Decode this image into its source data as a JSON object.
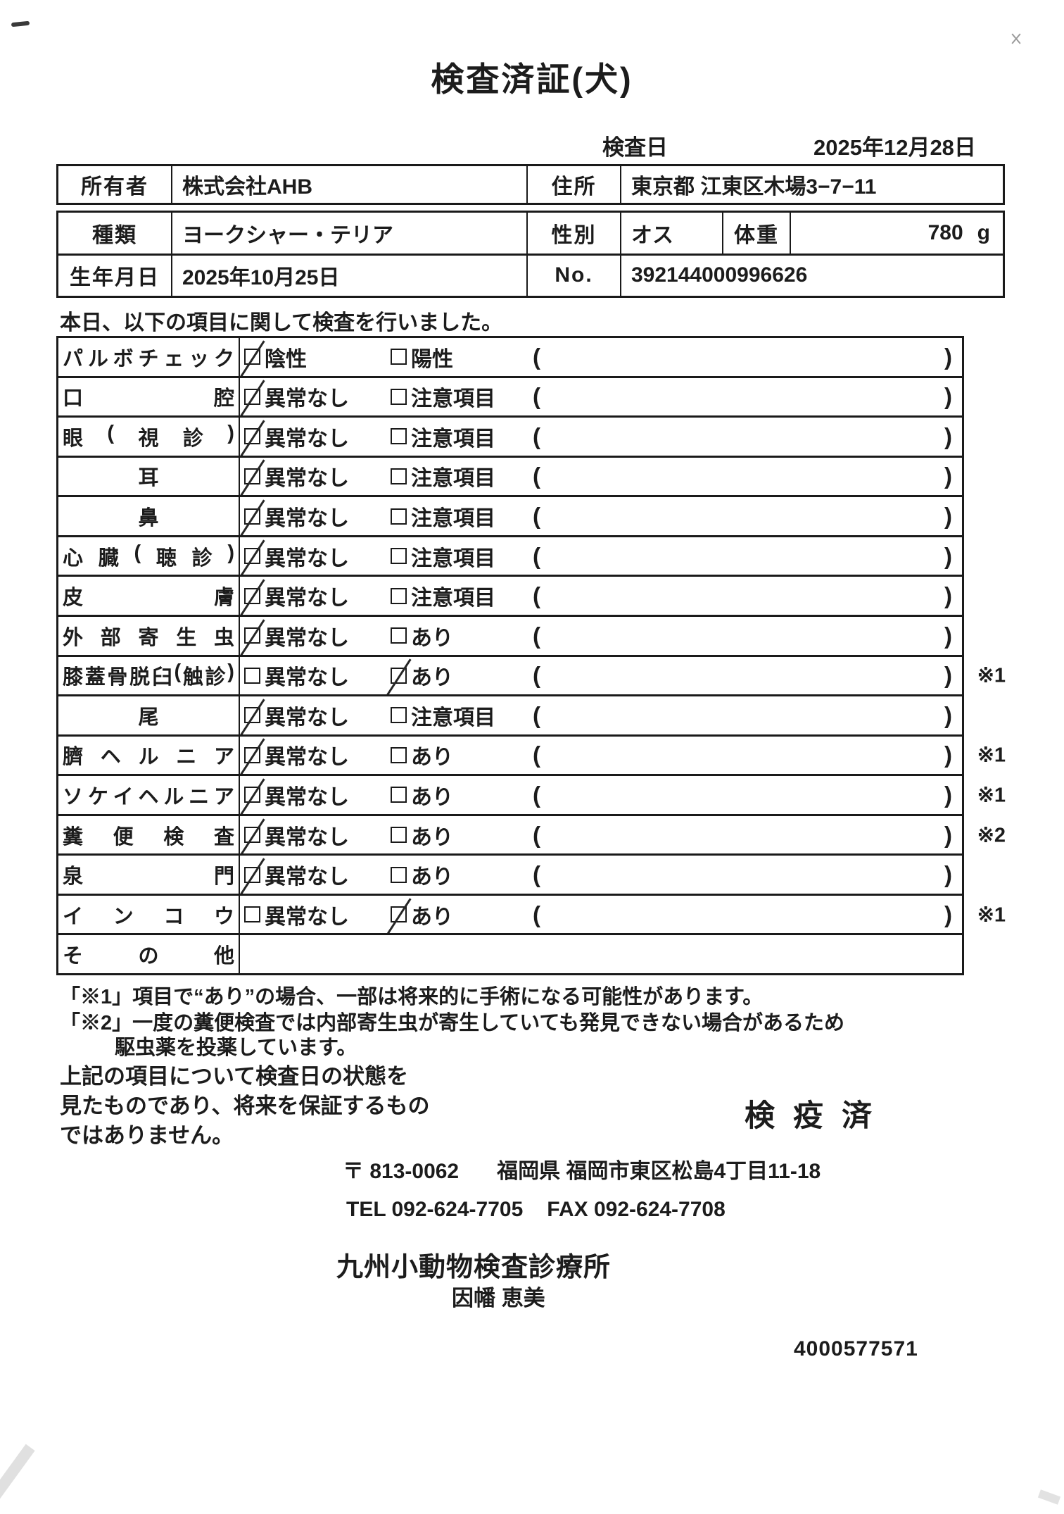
{
  "title": "検査済証(犬)",
  "inspection": {
    "date_label": "検査日",
    "date_value": "2025年12月28日"
  },
  "owner_table": {
    "owner_label": "所有者",
    "owner_value": "株式会社AHB",
    "address_label": "住所",
    "address_value": "東京都 江東区木場3−7−11"
  },
  "animal_table": {
    "breed_label": "種類",
    "breed_value": "ヨークシャー・テリア",
    "sex_label": "性別",
    "sex_value": "オス",
    "weight_label": "体重",
    "weight_value": "780",
    "weight_unit": "g",
    "birth_label": "生年月日",
    "birth_value": "2025年10月25日",
    "no_label": "No.",
    "no_value": "392144000996626"
  },
  "intro": "本日、以下の項目に関して検査を行いました。",
  "check_table": {
    "paren_open": "(",
    "paren_close": ")",
    "rows": [
      {
        "label": "パルボチェック",
        "options": true,
        "opt1": "陰性",
        "opt1_checked": true,
        "opt2": "陽性",
        "opt2_checked": false,
        "note": ""
      },
      {
        "label": "口腔",
        "options": true,
        "opt1": "異常なし",
        "opt1_checked": true,
        "opt2": "注意項目",
        "opt2_checked": false,
        "note": ""
      },
      {
        "label": "眼(視診)",
        "options": true,
        "opt1": "異常なし",
        "opt1_checked": true,
        "opt2": "注意項目",
        "opt2_checked": false,
        "note": ""
      },
      {
        "label": "耳",
        "options": true,
        "opt1": "異常なし",
        "opt1_checked": true,
        "opt2": "注意項目",
        "opt2_checked": false,
        "note": ""
      },
      {
        "label": "鼻",
        "options": true,
        "opt1": "異常なし",
        "opt1_checked": true,
        "opt2": "注意項目",
        "opt2_checked": false,
        "note": ""
      },
      {
        "label": "心臓(聴診)",
        "options": true,
        "opt1": "異常なし",
        "opt1_checked": true,
        "opt2": "注意項目",
        "opt2_checked": false,
        "note": ""
      },
      {
        "label": "皮膚",
        "options": true,
        "opt1": "異常なし",
        "opt1_checked": true,
        "opt2": "注意項目",
        "opt2_checked": false,
        "note": ""
      },
      {
        "label": "外部寄生虫",
        "options": true,
        "opt1": "異常なし",
        "opt1_checked": true,
        "opt2": "あり",
        "opt2_checked": false,
        "note": ""
      },
      {
        "label": "膝蓋骨脱臼(触診)",
        "options": true,
        "opt1": "異常なし",
        "opt1_checked": false,
        "opt2": "あり",
        "opt2_checked": true,
        "note": "※1"
      },
      {
        "label": "尾",
        "options": true,
        "opt1": "異常なし",
        "opt1_checked": true,
        "opt2": "注意項目",
        "opt2_checked": false,
        "note": ""
      },
      {
        "label": "臍ヘルニア",
        "options": true,
        "opt1": "異常なし",
        "opt1_checked": true,
        "opt2": "あり",
        "opt2_checked": false,
        "note": "※1"
      },
      {
        "label": "ソケイヘルニア",
        "options": true,
        "opt1": "異常なし",
        "opt1_checked": true,
        "opt2": "あり",
        "opt2_checked": false,
        "note": "※1"
      },
      {
        "label": "糞便検査",
        "options": true,
        "opt1": "異常なし",
        "opt1_checked": true,
        "opt2": "あり",
        "opt2_checked": false,
        "note": "※2"
      },
      {
        "label": "泉門",
        "options": true,
        "opt1": "異常なし",
        "opt1_checked": true,
        "opt2": "あり",
        "opt2_checked": false,
        "note": ""
      },
      {
        "label": "インコウ",
        "options": true,
        "opt1": "異常なし",
        "opt1_checked": false,
        "opt2": "あり",
        "opt2_checked": true,
        "note": "※1"
      },
      {
        "label": "その他",
        "options": false,
        "opt1": "",
        "opt1_checked": false,
        "opt2": "",
        "opt2_checked": false,
        "note": ""
      }
    ]
  },
  "notes": {
    "note1": "「※1」項目で“あり”の場合、一部は将来的に手術になる可能性があります。",
    "note2_line1": "「※2」一度の糞便検査では内部寄生虫が寄生していても発見できない場合があるため",
    "note2_line2": "駆虫薬を投薬しています。"
  },
  "disclaimer": {
    "line1": "上記の項目について検査日の状態を",
    "line2": "見たものであり、将来を保証するもの",
    "line3": "ではありません。"
  },
  "stamp": "検疫済",
  "footer": {
    "postal": "〒 813-0062",
    "address": "福岡県 福岡市東区松島4丁目11-18",
    "tel": "TEL 092-624-7705",
    "fax": "FAX 092-624-7708",
    "clinic": "九州小動物検査診療所",
    "veterinarian": "因幡 恵美",
    "serial": "4000577571"
  }
}
